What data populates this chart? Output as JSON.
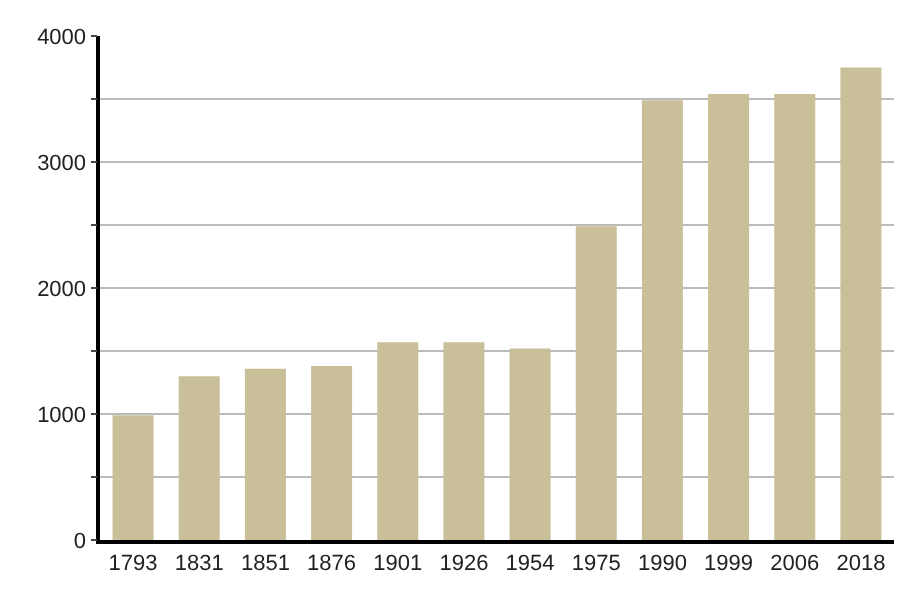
{
  "chart_data": {
    "type": "bar",
    "categories": [
      "1793",
      "1831",
      "1851",
      "1876",
      "1901",
      "1926",
      "1954",
      "1975",
      "1990",
      "1999",
      "2006",
      "2018"
    ],
    "values": [
      990,
      1300,
      1360,
      1380,
      1570,
      1570,
      1520,
      2490,
      3490,
      3540,
      3540,
      3750
    ],
    "color": "#c9bf98",
    "ylim": [
      0,
      4000
    ],
    "yticks": [
      0,
      {
        "value": 500,
        "label": null
      },
      1000,
      {
        "value": 1500,
        "label": null
      },
      2000,
      {
        "value": 2500,
        "label": null
      },
      3000,
      {
        "value": 3500,
        "label": null
      },
      4000
    ],
    "grid": "y"
  }
}
